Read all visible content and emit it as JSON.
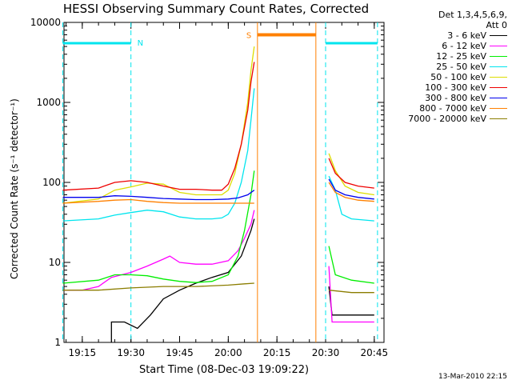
{
  "chart_data": {
    "type": "line",
    "title": "HESSI Observing Summary Count Rates, Corrected",
    "xlabel": "Start Time (08-Dec-03 19:09:22)",
    "ylabel": "Corrected Count Rate (s⁻¹ detector⁻¹)",
    "timestamp": "13-Mar-2010 22:15",
    "legend_header": [
      "Det 1,3,4,5,6,9,",
      "Att 0"
    ],
    "legend_position": "right",
    "yscale": "log",
    "xlim": [
      "19:09:22",
      "20:48:00"
    ],
    "ylim": [
      1,
      10000
    ],
    "x_ticks": [
      "19:15",
      "19:30",
      "19:45",
      "20:00",
      "20:15",
      "20:30",
      "20:45"
    ],
    "y_ticks": [
      "1",
      "10",
      "100",
      "1000",
      "10000"
    ],
    "series": [
      {
        "name": "3 - 6 keV",
        "color": "#000000",
        "points": [
          [
            "19:24",
            1
          ],
          [
            "19:24",
            1.8
          ],
          [
            "19:28",
            1.8
          ],
          [
            "19:32",
            1.5
          ],
          [
            "19:36",
            2.2
          ],
          [
            "19:40",
            3.5
          ],
          [
            "19:45",
            4.5
          ],
          [
            "19:50",
            5.5
          ],
          [
            "19:55",
            6.5
          ],
          [
            "20:00",
            7.5
          ],
          [
            "20:04",
            12
          ],
          [
            "20:07",
            25
          ],
          [
            "20:08",
            35
          ]
        ],
        "post_points": [
          [
            "20:31",
            5
          ],
          [
            "20:32",
            2.2
          ],
          [
            "20:38",
            2.2
          ],
          [
            "20:45",
            2.2
          ]
        ]
      },
      {
        "name": "6 - 12 keV",
        "color": "#ff00ff",
        "points": [
          [
            "19:09",
            4.5
          ],
          [
            "19:15",
            4.5
          ],
          [
            "19:20",
            5
          ],
          [
            "19:24",
            6.5
          ],
          [
            "19:30",
            7.5
          ],
          [
            "19:35",
            9
          ],
          [
            "19:40",
            11
          ],
          [
            "19:42",
            12
          ],
          [
            "19:45",
            10
          ],
          [
            "19:50",
            9.5
          ],
          [
            "19:55",
            9.5
          ],
          [
            "20:00",
            10.5
          ],
          [
            "20:03",
            14
          ],
          [
            "20:05",
            20
          ],
          [
            "20:07",
            30
          ],
          [
            "20:08",
            45
          ]
        ],
        "post_points": [
          [
            "20:31",
            9
          ],
          [
            "20:32",
            1.8
          ],
          [
            "20:38",
            1.8
          ],
          [
            "20:45",
            1.8
          ]
        ]
      },
      {
        "name": "12 - 25 keV",
        "color": "#00ee00",
        "points": [
          [
            "19:09",
            5.5
          ],
          [
            "19:20",
            6
          ],
          [
            "19:25",
            7
          ],
          [
            "19:30",
            7
          ],
          [
            "19:35",
            6.8
          ],
          [
            "19:40",
            6.2
          ],
          [
            "19:45",
            5.8
          ],
          [
            "19:50",
            5.6
          ],
          [
            "19:55",
            5.8
          ],
          [
            "20:00",
            7
          ],
          [
            "20:03",
            12
          ],
          [
            "20:05",
            25
          ],
          [
            "20:07",
            70
          ],
          [
            "20:08",
            140
          ]
        ],
        "post_points": [
          [
            "20:31",
            16
          ],
          [
            "20:33",
            7
          ],
          [
            "20:38",
            6
          ],
          [
            "20:45",
            5.5
          ]
        ]
      },
      {
        "name": "25 - 50 keV",
        "color": "#00e5ee",
        "points": [
          [
            "19:09",
            33
          ],
          [
            "19:20",
            35
          ],
          [
            "19:25",
            39
          ],
          [
            "19:30",
            42
          ],
          [
            "19:35",
            45
          ],
          [
            "19:40",
            43
          ],
          [
            "19:45",
            37
          ],
          [
            "19:50",
            35
          ],
          [
            "19:55",
            35
          ],
          [
            "19:58",
            36
          ],
          [
            "20:00",
            40
          ],
          [
            "20:02",
            55
          ],
          [
            "20:04",
            100
          ],
          [
            "20:06",
            250
          ],
          [
            "20:07",
            600
          ],
          [
            "20:08",
            1500
          ]
        ],
        "post_points": [
          [
            "20:31",
            120
          ],
          [
            "20:33",
            80
          ],
          [
            "20:35",
            40
          ],
          [
            "20:38",
            35
          ],
          [
            "20:45",
            33
          ]
        ]
      },
      {
        "name": "50 - 100 keV",
        "color": "#dddd00",
        "points": [
          [
            "19:09",
            55
          ],
          [
            "19:20",
            62
          ],
          [
            "19:25",
            80
          ],
          [
            "19:30",
            88
          ],
          [
            "19:35",
            98
          ],
          [
            "19:40",
            95
          ],
          [
            "19:45",
            75
          ],
          [
            "19:50",
            70
          ],
          [
            "19:55",
            70
          ],
          [
            "19:58",
            70
          ],
          [
            "20:00",
            80
          ],
          [
            "20:02",
            130
          ],
          [
            "20:04",
            300
          ],
          [
            "20:06",
            1000
          ],
          [
            "20:07",
            2500
          ],
          [
            "20:08",
            5000
          ]
        ],
        "post_points": [
          [
            "20:31",
            230
          ],
          [
            "20:33",
            140
          ],
          [
            "20:36",
            90
          ],
          [
            "20:40",
            75
          ],
          [
            "20:45",
            70
          ]
        ]
      },
      {
        "name": "100 - 300 keV",
        "color": "#ee0000",
        "points": [
          [
            "19:09",
            80
          ],
          [
            "19:20",
            85
          ],
          [
            "19:25",
            100
          ],
          [
            "19:30",
            105
          ],
          [
            "19:35",
            100
          ],
          [
            "19:40",
            90
          ],
          [
            "19:45",
            82
          ],
          [
            "19:50",
            82
          ],
          [
            "19:55",
            80
          ],
          [
            "19:58",
            80
          ],
          [
            "20:00",
            95
          ],
          [
            "20:02",
            150
          ],
          [
            "20:04",
            300
          ],
          [
            "20:06",
            800
          ],
          [
            "20:07",
            1800
          ],
          [
            "20:08",
            3200
          ]
        ],
        "post_points": [
          [
            "20:31",
            200
          ],
          [
            "20:33",
            130
          ],
          [
            "20:36",
            100
          ],
          [
            "20:40",
            90
          ],
          [
            "20:45",
            85
          ]
        ]
      },
      {
        "name": "300 - 800 keV",
        "color": "#0000ee",
        "points": [
          [
            "19:09",
            65
          ],
          [
            "19:20",
            65
          ],
          [
            "19:25",
            68
          ],
          [
            "19:30",
            67
          ],
          [
            "19:35",
            65
          ],
          [
            "19:40",
            63
          ],
          [
            "19:45",
            62
          ],
          [
            "19:50",
            61
          ],
          [
            "19:55",
            61
          ],
          [
            "20:00",
            62
          ],
          [
            "20:03",
            64
          ],
          [
            "20:06",
            70
          ],
          [
            "20:08",
            80
          ]
        ],
        "post_points": [
          [
            "20:31",
            110
          ],
          [
            "20:33",
            80
          ],
          [
            "20:36",
            70
          ],
          [
            "20:40",
            65
          ],
          [
            "20:45",
            62
          ]
        ]
      },
      {
        "name": "800 - 7000 keV",
        "color": "#ff8000",
        "points": [
          [
            "19:09",
            55
          ],
          [
            "19:20",
            58
          ],
          [
            "19:25",
            60
          ],
          [
            "19:30",
            61
          ],
          [
            "19:35",
            58
          ],
          [
            "19:40",
            56
          ],
          [
            "19:45",
            55
          ],
          [
            "19:50",
            55
          ],
          [
            "19:55",
            55
          ],
          [
            "20:00",
            55
          ],
          [
            "20:05",
            55
          ],
          [
            "20:08",
            55
          ]
        ],
        "post_points": [
          [
            "20:31",
            100
          ],
          [
            "20:33",
            75
          ],
          [
            "20:36",
            65
          ],
          [
            "20:40",
            60
          ],
          [
            "20:45",
            58
          ]
        ]
      },
      {
        "name": "7000 - 20000 keV",
        "color": "#8b7d00",
        "points": [
          [
            "19:09",
            4.5
          ],
          [
            "19:20",
            4.5
          ],
          [
            "19:30",
            4.8
          ],
          [
            "19:40",
            5
          ],
          [
            "19:50",
            5
          ],
          [
            "20:00",
            5.2
          ],
          [
            "20:05",
            5.4
          ],
          [
            "20:08",
            5.5
          ]
        ],
        "post_points": [
          [
            "20:31",
            4.5
          ],
          [
            "20:38",
            4.2
          ],
          [
            "20:45",
            4.2
          ]
        ]
      }
    ],
    "flags": {
      "night_label": "N",
      "saa_label": "S",
      "night_level": 5500,
      "saa_level": 7000,
      "night_intervals": [
        [
          "19:09",
          "19:30"
        ],
        [
          "20:30",
          "20:46"
        ]
      ],
      "saa_interval": [
        "20:09",
        "20:27"
      ],
      "night_color": "#00e5ee",
      "saa_color": "#ff8000"
    }
  }
}
